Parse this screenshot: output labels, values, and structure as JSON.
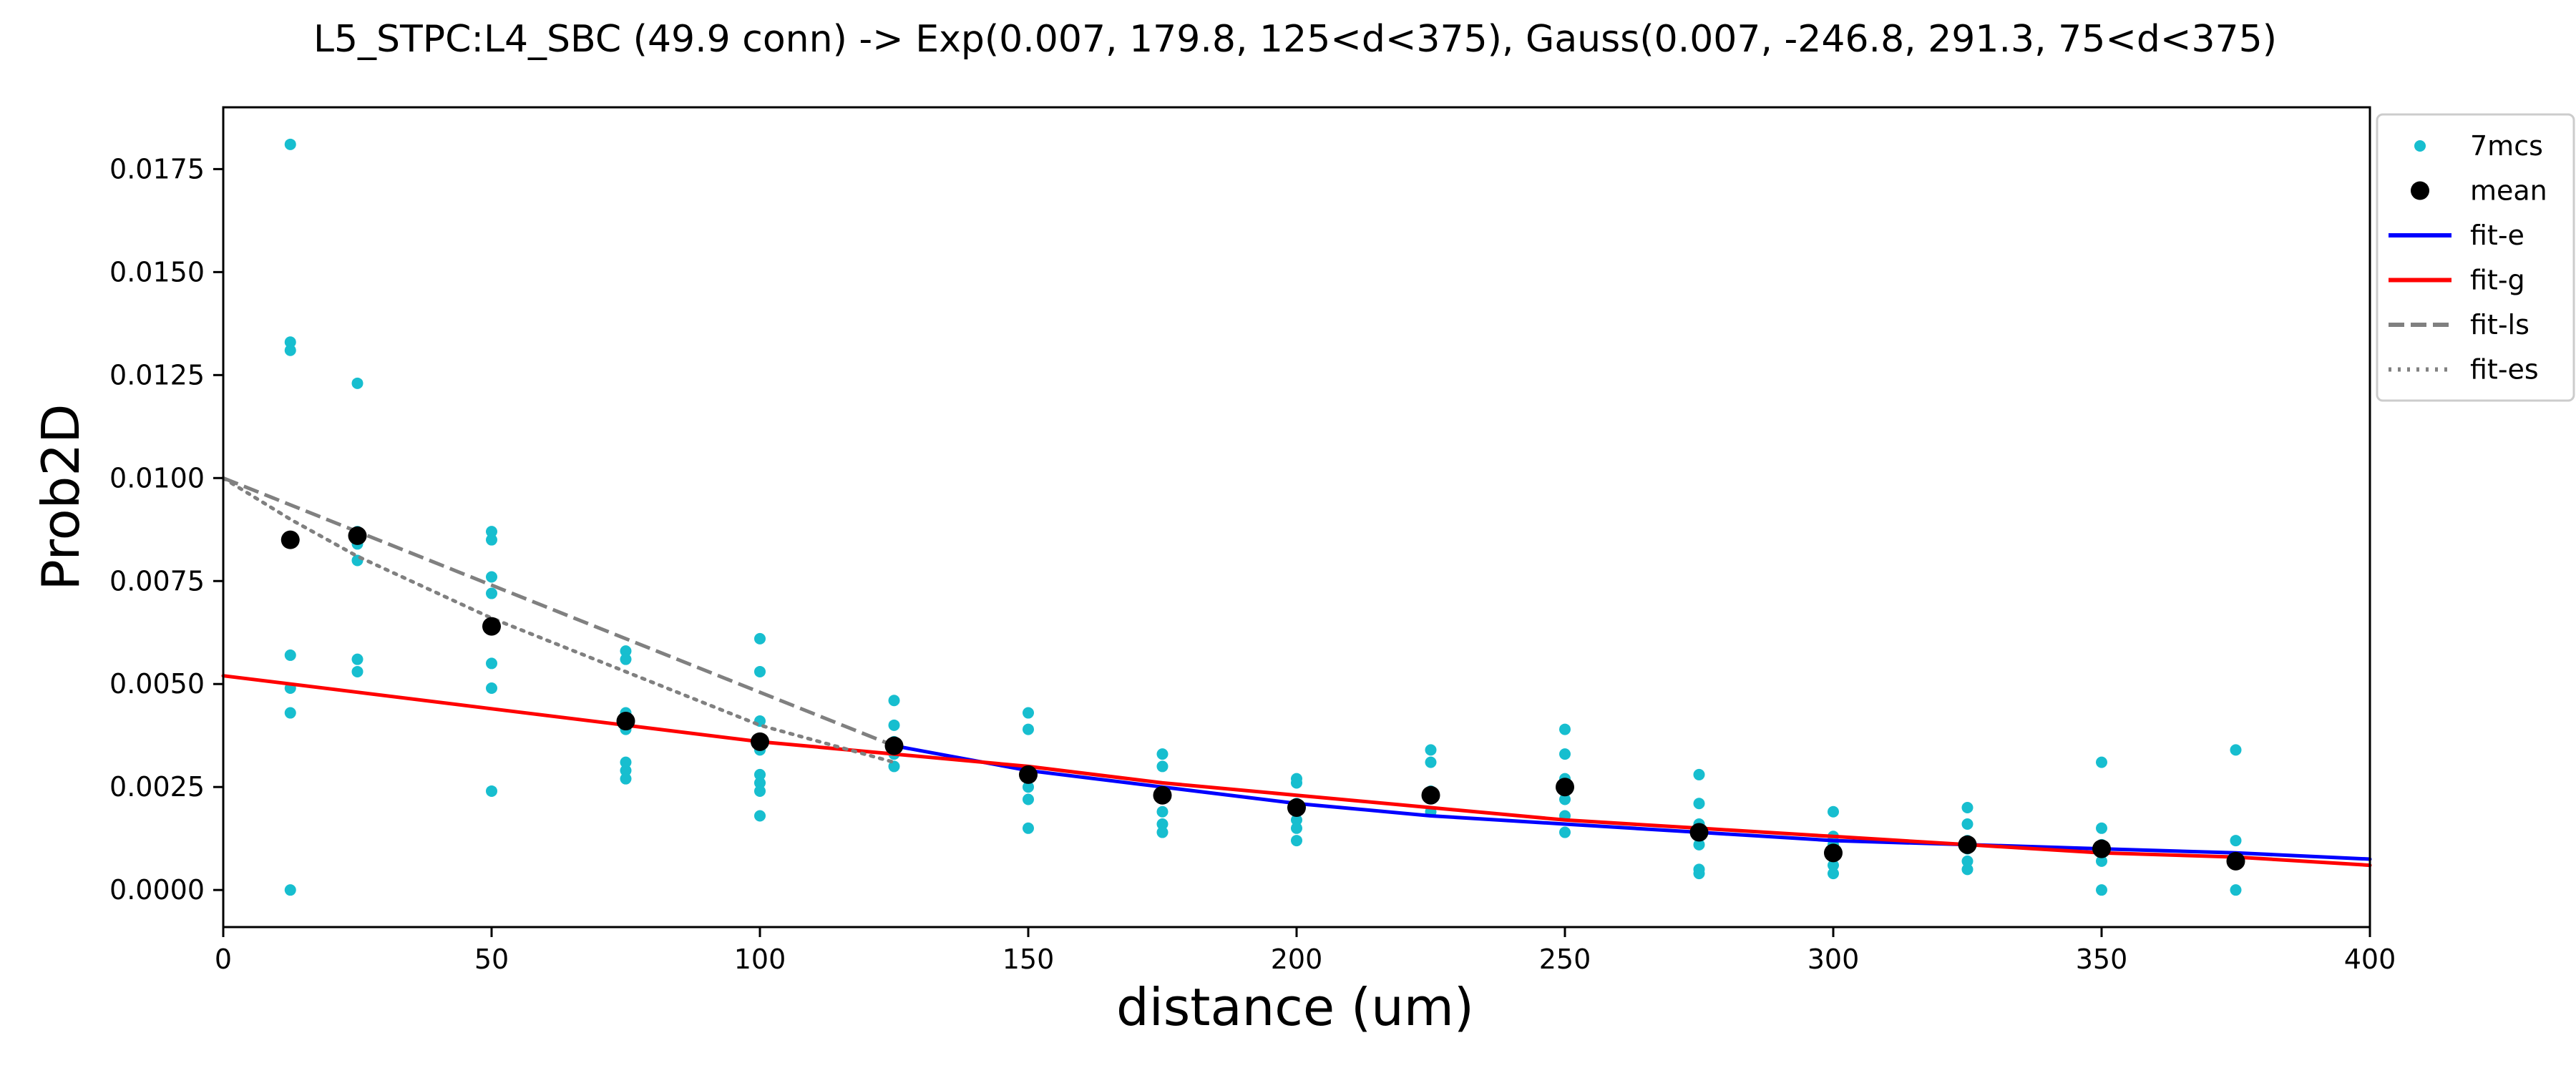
{
  "chart_data": {
    "type": "scatter",
    "title": "L5_STPC:L4_SBC (49.9 conn) -> Exp(0.007, 179.8, 125<d<375), Gauss(0.007, -246.8, 291.3, 75<d<375)",
    "xlabel": "distance (um)",
    "ylabel": "Prob2D",
    "xlim": [
      0,
      400
    ],
    "ylim": [
      -0.0009,
      0.019
    ],
    "xticks": [
      0,
      50,
      100,
      150,
      200,
      250,
      300,
      350,
      400
    ],
    "xtick_labels": [
      "0",
      "50",
      "100",
      "150",
      "200",
      "250",
      "300",
      "350",
      "400"
    ],
    "yticks": [
      0,
      0.0025,
      0.005,
      0.0075,
      0.01,
      0.0125,
      0.015,
      0.0175
    ],
    "ytick_labels": [
      "0.0000",
      "0.0025",
      "0.0050",
      "0.0075",
      "0.0100",
      "0.0125",
      "0.0150",
      "0.0175"
    ],
    "grid": false,
    "legend_position": "outside-top-right",
    "series": [
      {
        "name": "7mcs",
        "kind": "scatter",
        "color": "#17becf",
        "points": [
          [
            12.5,
            0.0181
          ],
          [
            12.5,
            0.0133
          ],
          [
            12.5,
            0.0131
          ],
          [
            12.5,
            0.0057
          ],
          [
            12.5,
            0.0049
          ],
          [
            12.5,
            0.0043
          ],
          [
            12.5,
            0.0
          ],
          [
            25,
            0.0123
          ],
          [
            25,
            0.0087
          ],
          [
            25,
            0.0084
          ],
          [
            25,
            0.008
          ],
          [
            25,
            0.0056
          ],
          [
            25,
            0.0053
          ],
          [
            50,
            0.0087
          ],
          [
            50,
            0.0085
          ],
          [
            50,
            0.0076
          ],
          [
            50,
            0.0072
          ],
          [
            50,
            0.0055
          ],
          [
            50,
            0.0049
          ],
          [
            50,
            0.0024
          ],
          [
            75,
            0.0058
          ],
          [
            75,
            0.0056
          ],
          [
            75,
            0.0043
          ],
          [
            75,
            0.0039
          ],
          [
            75,
            0.0031
          ],
          [
            75,
            0.0029
          ],
          [
            75,
            0.0027
          ],
          [
            100,
            0.0061
          ],
          [
            100,
            0.0053
          ],
          [
            100,
            0.0041
          ],
          [
            100,
            0.0034
          ],
          [
            100,
            0.0028
          ],
          [
            100,
            0.0026
          ],
          [
            100,
            0.0024
          ],
          [
            100,
            0.0018
          ],
          [
            125,
            0.0046
          ],
          [
            125,
            0.004
          ],
          [
            125,
            0.0036
          ],
          [
            125,
            0.0033
          ],
          [
            125,
            0.003
          ],
          [
            150,
            0.0043
          ],
          [
            150,
            0.0039
          ],
          [
            150,
            0.0028
          ],
          [
            150,
            0.0025
          ],
          [
            150,
            0.0022
          ],
          [
            150,
            0.0015
          ],
          [
            175,
            0.0033
          ],
          [
            175,
            0.003
          ],
          [
            175,
            0.0024
          ],
          [
            175,
            0.0019
          ],
          [
            175,
            0.0016
          ],
          [
            175,
            0.0014
          ],
          [
            200,
            0.0027
          ],
          [
            200,
            0.0026
          ],
          [
            200,
            0.0021
          ],
          [
            200,
            0.0017
          ],
          [
            200,
            0.0015
          ],
          [
            200,
            0.0012
          ],
          [
            225,
            0.0034
          ],
          [
            225,
            0.0031
          ],
          [
            225,
            0.0024
          ],
          [
            225,
            0.0019
          ],
          [
            250,
            0.0039
          ],
          [
            250,
            0.0033
          ],
          [
            250,
            0.0027
          ],
          [
            250,
            0.0022
          ],
          [
            250,
            0.0018
          ],
          [
            250,
            0.0014
          ],
          [
            275,
            0.0028
          ],
          [
            275,
            0.0021
          ],
          [
            275,
            0.0016
          ],
          [
            275,
            0.0011
          ],
          [
            275,
            0.0005
          ],
          [
            275,
            0.0004
          ],
          [
            300,
            0.0019
          ],
          [
            300,
            0.0013
          ],
          [
            300,
            0.0011
          ],
          [
            300,
            0.0008
          ],
          [
            300,
            0.0006
          ],
          [
            300,
            0.0004
          ],
          [
            325,
            0.002
          ],
          [
            325,
            0.0016
          ],
          [
            325,
            0.0012
          ],
          [
            325,
            0.001
          ],
          [
            325,
            0.0007
          ],
          [
            325,
            0.0005
          ],
          [
            350,
            0.0031
          ],
          [
            350,
            0.0015
          ],
          [
            350,
            0.0011
          ],
          [
            350,
            0.0009
          ],
          [
            350,
            0.0007
          ],
          [
            350,
            0.0
          ],
          [
            375,
            0.0034
          ],
          [
            375,
            0.0012
          ],
          [
            375,
            0.0008
          ],
          [
            375,
            0.0
          ]
        ]
      },
      {
        "name": "mean",
        "kind": "scatter",
        "color": "#000000",
        "points": [
          [
            12.5,
            0.0085
          ],
          [
            25,
            0.0086
          ],
          [
            50,
            0.0064
          ],
          [
            75,
            0.0041
          ],
          [
            100,
            0.0036
          ],
          [
            125,
            0.0035
          ],
          [
            150,
            0.0028
          ],
          [
            175,
            0.0023
          ],
          [
            200,
            0.002
          ],
          [
            225,
            0.0023
          ],
          [
            250,
            0.0025
          ],
          [
            275,
            0.0014
          ],
          [
            300,
            0.0009
          ],
          [
            325,
            0.0011
          ],
          [
            350,
            0.001
          ],
          [
            375,
            0.0007
          ]
        ]
      },
      {
        "name": "fit-e",
        "kind": "line",
        "color": "#0000ff",
        "dash": "solid",
        "points": [
          [
            125,
            0.0035
          ],
          [
            150,
            0.0029
          ],
          [
            175,
            0.0025
          ],
          [
            200,
            0.0021
          ],
          [
            225,
            0.0018
          ],
          [
            250,
            0.0016
          ],
          [
            275,
            0.0014
          ],
          [
            300,
            0.0012
          ],
          [
            325,
            0.0011
          ],
          [
            350,
            0.001
          ],
          [
            375,
            0.0009
          ],
          [
            400,
            0.00075
          ]
        ]
      },
      {
        "name": "fit-g",
        "kind": "line",
        "color": "#ff0000",
        "dash": "solid",
        "points": [
          [
            0,
            0.0052
          ],
          [
            25,
            0.0048
          ],
          [
            50,
            0.0044
          ],
          [
            75,
            0.004
          ],
          [
            100,
            0.0036
          ],
          [
            125,
            0.0033
          ],
          [
            150,
            0.003
          ],
          [
            175,
            0.0026
          ],
          [
            200,
            0.0023
          ],
          [
            225,
            0.002
          ],
          [
            250,
            0.0017
          ],
          [
            275,
            0.0015
          ],
          [
            300,
            0.0013
          ],
          [
            325,
            0.0011
          ],
          [
            350,
            0.0009
          ],
          [
            375,
            0.0008
          ],
          [
            400,
            0.0006
          ]
        ]
      },
      {
        "name": "fit-ls",
        "kind": "line",
        "color": "#808080",
        "dash": "dashed",
        "points": [
          [
            0,
            0.01
          ],
          [
            125,
            0.0035
          ]
        ]
      },
      {
        "name": "fit-es",
        "kind": "line",
        "color": "#808080",
        "dash": "dotted",
        "points": [
          [
            0,
            0.01
          ],
          [
            12.5,
            0.009
          ],
          [
            25,
            0.0081
          ],
          [
            50,
            0.0066
          ],
          [
            75,
            0.0053
          ],
          [
            100,
            0.004
          ],
          [
            125,
            0.0031
          ]
        ]
      }
    ]
  }
}
